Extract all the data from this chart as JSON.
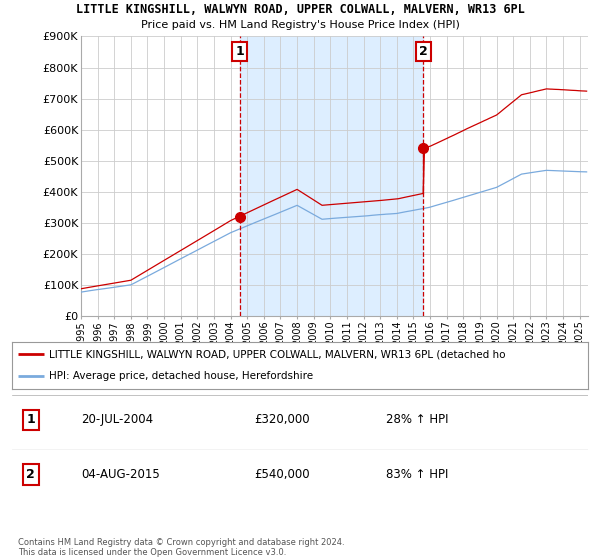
{
  "title1": "LITTLE KINGSHILL, WALWYN ROAD, UPPER COLWALL, MALVERN, WR13 6PL",
  "title2": "Price paid vs. HM Land Registry's House Price Index (HPI)",
  "yticks": [
    0,
    100000,
    200000,
    300000,
    400000,
    500000,
    600000,
    700000,
    800000,
    900000
  ],
  "ytick_labels": [
    "£0",
    "£100K",
    "£200K",
    "£300K",
    "£400K",
    "£500K",
    "£600K",
    "£700K",
    "£800K",
    "£900K"
  ],
  "sale1_year": 2004.54,
  "sale1_price": 320000,
  "sale1_label": "20-JUL-2004",
  "sale1_hpi_pct": "28% ↑ HPI",
  "sale2_year": 2015.6,
  "sale2_price": 540000,
  "sale2_label": "04-AUG-2015",
  "sale2_hpi_pct": "83% ↑ HPI",
  "red_line_color": "#cc0000",
  "blue_line_color": "#7aaadd",
  "shade_color": "#ddeeff",
  "annotation_box_color": "#cc0000",
  "grid_color": "#cccccc",
  "legend_red_label": "LITTLE KINGSHILL, WALWYN ROAD, UPPER COLWALL, MALVERN, WR13 6PL (detached ho",
  "legend_blue_label": "HPI: Average price, detached house, Herefordshire",
  "footer": "Contains HM Land Registry data © Crown copyright and database right 2024.\nThis data is licensed under the Open Government Licence v3.0.",
  "xmin": 1995,
  "xmax": 2025.5,
  "ymin": 0,
  "ymax": 900000
}
